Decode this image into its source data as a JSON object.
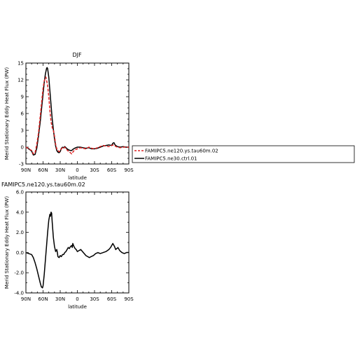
{
  "chart_data": [
    {
      "type": "line",
      "title": "DJF",
      "xlabel": "latitude",
      "ylabel": "Merid Stationary Eddy Heat Flux (PW)",
      "xlim": [
        90,
        -90
      ],
      "ylim": [
        -3,
        15
      ],
      "xticks": [
        90,
        60,
        30,
        0,
        -30,
        -60,
        -90
      ],
      "xtick_labels": [
        "90N",
        "60N",
        "30N",
        "0",
        "30S",
        "60S",
        "90S"
      ],
      "yticks": [
        -3,
        0,
        3,
        6,
        9,
        12,
        15
      ],
      "ytick_labels": [
        "-3",
        "0",
        "3",
        "6",
        "9",
        "12",
        "15"
      ],
      "legend_position": "right",
      "series": [
        {
          "name": "FAMIPC5.ne120.ys.tau60m.02",
          "color": "#dd2222",
          "dash": "dashed",
          "points": [
            [
              90,
              0.0
            ],
            [
              85,
              -0.3
            ],
            [
              80,
              -0.6
            ],
            [
              77,
              -1.2
            ],
            [
              74,
              -1.0
            ],
            [
              71,
              0.5
            ],
            [
              68,
              2.5
            ],
            [
              65,
              5.5
            ],
            [
              62,
              8.5
            ],
            [
              60,
              10.5
            ],
            [
              58,
              11.8
            ],
            [
              56,
              12.3
            ],
            [
              55,
              12.5
            ],
            [
              54,
              12.0
            ],
            [
              52,
              11.0
            ],
            [
              50,
              9.0
            ],
            [
              48,
              6.5
            ],
            [
              46,
              4.5
            ],
            [
              44,
              3.5
            ],
            [
              42,
              3.0
            ],
            [
              40,
              2.0
            ],
            [
              38,
              0.5
            ],
            [
              36,
              -0.3
            ],
            [
              34,
              -0.6
            ],
            [
              32,
              -0.8
            ],
            [
              30,
              -0.7
            ],
            [
              28,
              -0.3
            ],
            [
              26,
              -0.1
            ],
            [
              24,
              -0.2
            ],
            [
              22,
              0.0
            ],
            [
              20,
              -0.3
            ],
            [
              18,
              -0.5
            ],
            [
              15,
              -0.8
            ],
            [
              12,
              -1.0
            ],
            [
              10,
              -1.2
            ],
            [
              8,
              -0.9
            ],
            [
              5,
              -0.5
            ],
            [
              0,
              -0.3
            ],
            [
              -5,
              -0.1
            ],
            [
              -10,
              -0.2
            ],
            [
              -15,
              -0.3
            ],
            [
              -20,
              0.0
            ],
            [
              -25,
              -0.2
            ],
            [
              -30,
              -0.3
            ],
            [
              -35,
              -0.1
            ],
            [
              -40,
              0.1
            ],
            [
              -45,
              0.3
            ],
            [
              -50,
              0.2
            ],
            [
              -55,
              0.1
            ],
            [
              -60,
              0.3
            ],
            [
              -63,
              0.4
            ],
            [
              -66,
              0.2
            ],
            [
              -70,
              0.0
            ],
            [
              -75,
              -0.1
            ],
            [
              -80,
              0.0
            ],
            [
              -85,
              0.0
            ],
            [
              -90,
              0.0
            ]
          ]
        },
        {
          "name": "FAMIPC5.ne30.ctrl.01",
          "color": "#000000",
          "dash": "solid",
          "points": [
            [
              90,
              0.0
            ],
            [
              85,
              -0.3
            ],
            [
              80,
              -0.7
            ],
            [
              77,
              -1.4
            ],
            [
              74,
              -1.3
            ],
            [
              71,
              -0.2
            ],
            [
              68,
              2.0
            ],
            [
              65,
              4.5
            ],
            [
              62,
              7.5
            ],
            [
              60,
              9.5
            ],
            [
              58,
              11.5
            ],
            [
              56,
              13.0
            ],
            [
              54,
              14.0
            ],
            [
              53,
              14.2
            ],
            [
              52,
              14.0
            ],
            [
              50,
              12.5
            ],
            [
              48,
              10.0
            ],
            [
              46,
              7.5
            ],
            [
              44,
              5.0
            ],
            [
              42,
              3.2
            ],
            [
              40,
              1.5
            ],
            [
              38,
              0.2
            ],
            [
              36,
              -0.6
            ],
            [
              34,
              -0.9
            ],
            [
              32,
              -1.0
            ],
            [
              30,
              -0.8
            ],
            [
              28,
              -0.2
            ],
            [
              26,
              0.0
            ],
            [
              24,
              -0.1
            ],
            [
              22,
              0.1
            ],
            [
              20,
              -0.1
            ],
            [
              18,
              -0.3
            ],
            [
              15,
              -0.5
            ],
            [
              12,
              -0.6
            ],
            [
              10,
              -0.6
            ],
            [
              8,
              -0.4
            ],
            [
              5,
              -0.2
            ],
            [
              0,
              0.0
            ],
            [
              -5,
              0.0
            ],
            [
              -10,
              -0.1
            ],
            [
              -15,
              -0.2
            ],
            [
              -20,
              -0.1
            ],
            [
              -25,
              -0.3
            ],
            [
              -30,
              -0.3
            ],
            [
              -35,
              -0.2
            ],
            [
              -40,
              0.0
            ],
            [
              -45,
              0.2
            ],
            [
              -50,
              0.3
            ],
            [
              -55,
              0.4
            ],
            [
              -60,
              0.3
            ],
            [
              -62,
              0.7
            ],
            [
              -64,
              0.8
            ],
            [
              -66,
              0.4
            ],
            [
              -70,
              0.1
            ],
            [
              -75,
              0.0
            ],
            [
              -80,
              0.1
            ],
            [
              -85,
              0.0
            ],
            [
              -90,
              0.0
            ]
          ]
        }
      ]
    },
    {
      "type": "line",
      "title": "FAMIPC5.ne120.ys.tau60m.02",
      "xlabel": "latitude",
      "ylabel": "Merid Stationary Eddy Heat Flux (PW)",
      "xlim": [
        90,
        -90
      ],
      "ylim": [
        -4,
        6
      ],
      "xticks": [
        90,
        60,
        30,
        0,
        -30,
        -60,
        -90
      ],
      "xtick_labels": [
        "90N",
        "60N",
        "30N",
        "0",
        "30S",
        "60S",
        "90S"
      ],
      "yticks": [
        -4,
        -2,
        0,
        2,
        4,
        6
      ],
      "ytick_labels": [
        "-4.0",
        "-2.0",
        "0.0",
        "2.0",
        "4.0",
        "6.0"
      ],
      "series": [
        {
          "color": "#000000",
          "dash": "solid",
          "points": [
            [
              90,
              0.0
            ],
            [
              85,
              -0.1
            ],
            [
              80,
              -0.2
            ],
            [
              77,
              -0.5
            ],
            [
              74,
              -1.0
            ],
            [
              71,
              -1.6
            ],
            [
              68,
              -2.3
            ],
            [
              65,
              -3.0
            ],
            [
              63,
              -3.4
            ],
            [
              61,
              -3.5
            ],
            [
              60,
              -3.3
            ],
            [
              58,
              -2.2
            ],
            [
              56,
              -0.8
            ],
            [
              54,
              0.6
            ],
            [
              52,
              2.0
            ],
            [
              50,
              3.2
            ],
            [
              48,
              3.8
            ],
            [
              47,
              3.6
            ],
            [
              46,
              4.0
            ],
            [
              45,
              3.9
            ],
            [
              44,
              3.0
            ],
            [
              42,
              1.5
            ],
            [
              40,
              0.6
            ],
            [
              38,
              0.1
            ],
            [
              36,
              0.3
            ],
            [
              35,
              0.0
            ],
            [
              34,
              -0.4
            ],
            [
              32,
              -0.5
            ],
            [
              30,
              -0.3
            ],
            [
              28,
              -0.4
            ],
            [
              26,
              -0.2
            ],
            [
              24,
              -0.2
            ],
            [
              22,
              0.0
            ],
            [
              20,
              0.1
            ],
            [
              18,
              0.3
            ],
            [
              16,
              0.5
            ],
            [
              14,
              0.4
            ],
            [
              12,
              0.6
            ],
            [
              10,
              0.7
            ],
            [
              9,
              0.5
            ],
            [
              8,
              0.9
            ],
            [
              6,
              0.6
            ],
            [
              4,
              0.4
            ],
            [
              2,
              0.3
            ],
            [
              0,
              0.1
            ],
            [
              -3,
              0.2
            ],
            [
              -6,
              0.3
            ],
            [
              -9,
              0.1
            ],
            [
              -12,
              -0.1
            ],
            [
              -15,
              -0.3
            ],
            [
              -18,
              -0.4
            ],
            [
              -21,
              -0.5
            ],
            [
              -24,
              -0.4
            ],
            [
              -28,
              -0.3
            ],
            [
              -32,
              -0.1
            ],
            [
              -36,
              0.0
            ],
            [
              -40,
              -0.1
            ],
            [
              -45,
              0.0
            ],
            [
              -50,
              0.1
            ],
            [
              -55,
              0.3
            ],
            [
              -58,
              0.5
            ],
            [
              -60,
              0.7
            ],
            [
              -62,
              0.9
            ],
            [
              -63,
              0.8
            ],
            [
              -65,
              0.6
            ],
            [
              -67,
              0.3
            ],
            [
              -69,
              0.4
            ],
            [
              -71,
              0.5
            ],
            [
              -74,
              0.2
            ],
            [
              -78,
              0.0
            ],
            [
              -82,
              -0.1
            ],
            [
              -86,
              0.0
            ],
            [
              -90,
              0.0
            ]
          ]
        }
      ]
    }
  ]
}
